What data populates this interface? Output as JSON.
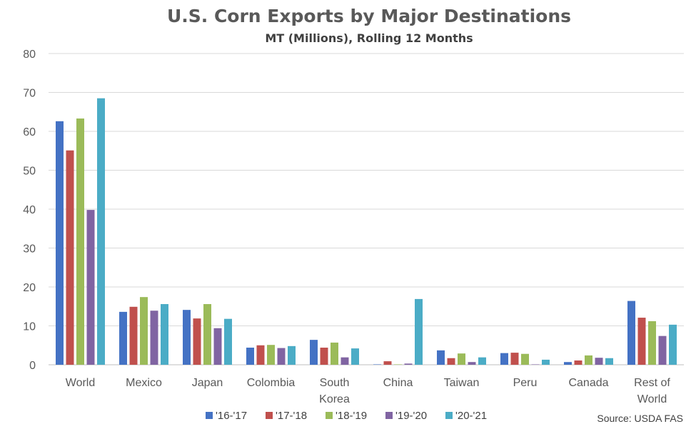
{
  "chart_data": {
    "type": "bar",
    "title": "U.S. Corn Exports by Major Destinations",
    "subtitle": "MT (Millions), Rolling 12 Months",
    "categories": [
      [
        "World"
      ],
      [
        "Mexico"
      ],
      [
        "Japan"
      ],
      [
        "Colombia"
      ],
      [
        "South",
        "Korea"
      ],
      [
        "China"
      ],
      [
        "Taiwan"
      ],
      [
        "Peru"
      ],
      [
        "Canada"
      ],
      [
        "Rest of",
        "World"
      ]
    ],
    "series": [
      {
        "name": "'16-'17",
        "color": "#4472C4",
        "values": [
          62.6,
          13.6,
          14.1,
          4.4,
          6.4,
          0.1,
          3.7,
          3.0,
          0.7,
          16.4
        ]
      },
      {
        "name": "'17-'18",
        "color": "#C0504D",
        "values": [
          55.1,
          14.9,
          11.9,
          5.0,
          4.4,
          0.9,
          1.7,
          3.1,
          1.1,
          12.1
        ]
      },
      {
        "name": "'18-'19",
        "color": "#9BBB59",
        "values": [
          63.3,
          17.4,
          15.6,
          5.1,
          5.7,
          0.1,
          2.9,
          2.8,
          2.4,
          11.2
        ]
      },
      {
        "name": "'19-'20",
        "color": "#8064A2",
        "values": [
          39.8,
          13.9,
          9.4,
          4.3,
          1.9,
          0.3,
          0.7,
          0.1,
          1.8,
          7.4
        ]
      },
      {
        "name": "'20-'21",
        "color": "#4BACC6",
        "values": [
          68.5,
          15.6,
          11.8,
          4.8,
          4.2,
          16.9,
          1.9,
          1.3,
          1.7,
          10.3
        ]
      }
    ],
    "ylim": [
      0,
      80
    ],
    "yticks": [
      0,
      10,
      20,
      30,
      40,
      50,
      60,
      70,
      80
    ],
    "xlabel": "",
    "ylabel": "",
    "grid": true,
    "legend_position": "bottom-center"
  },
  "source": "Source: USDA FAS"
}
